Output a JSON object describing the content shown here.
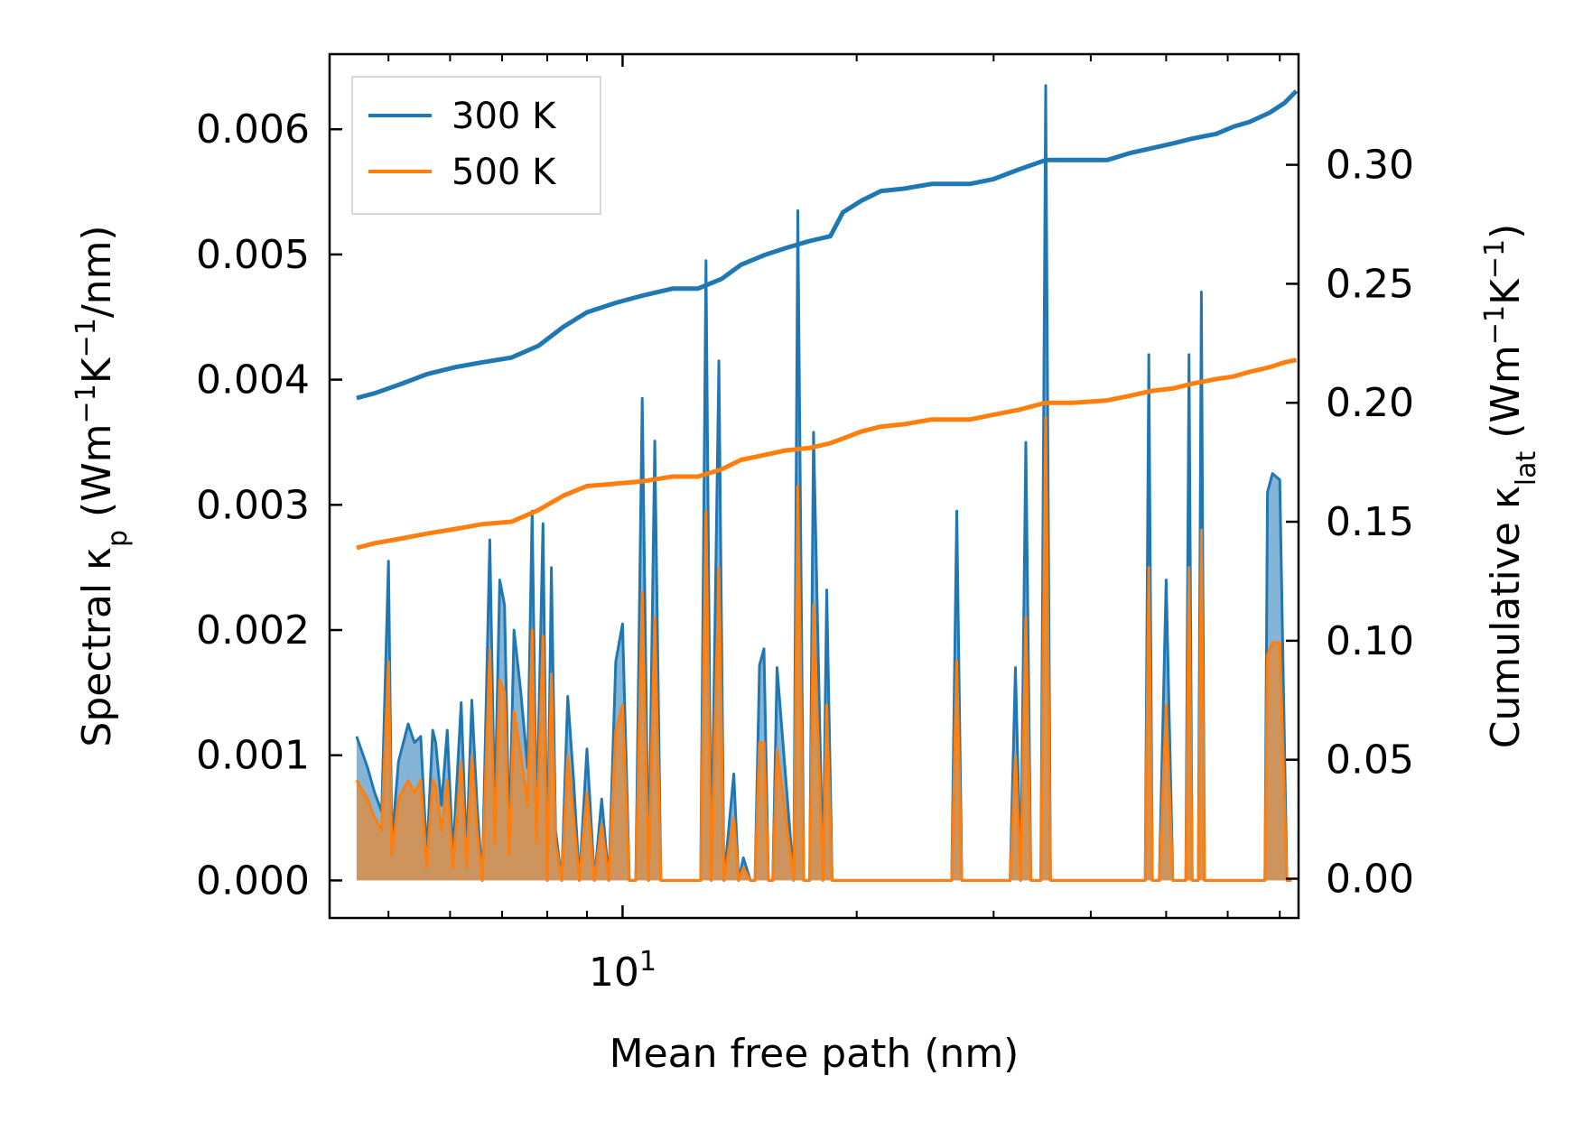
{
  "chart_data": {
    "type": "line",
    "xlabel": "Mean free path (nm)",
    "x_scale": "log",
    "xlim": [
      4.2,
      74
    ],
    "x_major_ticks": [
      {
        "value": 10,
        "base": "10",
        "exp": "1"
      }
    ],
    "x_minor_ticks": [
      5,
      6,
      7,
      8,
      9,
      20,
      30,
      40,
      50,
      60,
      70
    ],
    "left_axis": {
      "label_prefix": "Spectral κ",
      "label_sub": "p",
      "label_suffix": " (Wm",
      "label_sup1": "−1",
      "label_mid": "K",
      "label_sup2": "−1",
      "label_end": "/nm)",
      "ylim": [
        -0.0003,
        0.0066
      ],
      "ticks": [
        0,
        0.001,
        0.002,
        0.003,
        0.004,
        0.005,
        0.006
      ],
      "tick_labels": [
        "0.000",
        "0.001",
        "0.002",
        "0.003",
        "0.004",
        "0.005",
        "0.006"
      ]
    },
    "right_axis": {
      "label_prefix": "Cumulative κ",
      "label_sub": "lat",
      "label_suffix": " (Wm",
      "label_sup1": "−1",
      "label_mid": "K",
      "label_sup2": "−1",
      "label_end": ")",
      "ylim": [
        -0.0165,
        0.3465
      ],
      "ticks": [
        0,
        0.05,
        0.1,
        0.15,
        0.2,
        0.25,
        0.3
      ],
      "tick_labels": [
        "0.00",
        "0.05",
        "0.10",
        "0.15",
        "0.20",
        "0.25",
        "0.30"
      ]
    },
    "legend": {
      "position": "top-left",
      "entries": [
        {
          "name": "300 K",
          "color": "#1f77b4"
        },
        {
          "name": "500 K",
          "color": "#ff7f0e"
        }
      ]
    },
    "series": [
      {
        "name": "300 K",
        "axis": "right",
        "kind": "cumulative",
        "color": "#1f77b4",
        "x": [
          4.55,
          4.8,
          5.2,
          5.6,
          6.1,
          6.6,
          7.2,
          7.8,
          8.4,
          9.0,
          9.8,
          10.6,
          11.6,
          12.5,
          13.4,
          14.2,
          15.2,
          16.2,
          17.4,
          18.5,
          19.2,
          20.3,
          21.5,
          23.0,
          25.0,
          28.0,
          30.0,
          32.3,
          35.0,
          38.0,
          40.5,
          42.0,
          45.0,
          48.0,
          51.0,
          54.0,
          58.0,
          61.0,
          64.0,
          68.0,
          71.0,
          73.5
        ],
        "y": [
          0.202,
          0.204,
          0.208,
          0.212,
          0.215,
          0.217,
          0.219,
          0.224,
          0.232,
          0.238,
          0.242,
          0.245,
          0.248,
          0.248,
          0.252,
          0.258,
          0.262,
          0.265,
          0.268,
          0.27,
          0.28,
          0.285,
          0.289,
          0.29,
          0.292,
          0.292,
          0.294,
          0.298,
          0.302,
          0.302,
          0.302,
          0.302,
          0.305,
          0.307,
          0.309,
          0.311,
          0.313,
          0.316,
          0.318,
          0.322,
          0.326,
          0.331
        ]
      },
      {
        "name": "500 K",
        "axis": "right",
        "kind": "cumulative",
        "color": "#ff7f0e",
        "x": [
          4.55,
          4.8,
          5.2,
          5.6,
          6.1,
          6.6,
          7.2,
          7.8,
          8.4,
          9.0,
          9.8,
          10.6,
          11.6,
          12.5,
          13.4,
          14.2,
          15.2,
          16.2,
          17.4,
          18.5,
          19.2,
          20.3,
          21.5,
          23.0,
          25.0,
          28.0,
          30.0,
          32.3,
          35.0,
          38.0,
          42.0,
          45.0,
          48.0,
          51.0,
          54.0,
          58.0,
          61.0,
          64.0,
          68.0,
          71.0,
          73.5
        ],
        "y": [
          0.139,
          0.141,
          0.143,
          0.145,
          0.147,
          0.149,
          0.15,
          0.155,
          0.161,
          0.165,
          0.166,
          0.167,
          0.169,
          0.169,
          0.172,
          0.176,
          0.178,
          0.18,
          0.181,
          0.183,
          0.185,
          0.188,
          0.19,
          0.191,
          0.193,
          0.193,
          0.195,
          0.197,
          0.2,
          0.2,
          0.201,
          0.203,
          0.205,
          0.206,
          0.208,
          0.21,
          0.211,
          0.213,
          0.215,
          0.217,
          0.218
        ]
      },
      {
        "name": "300 K spectral",
        "axis": "left",
        "kind": "filled",
        "color": "#1f77b4",
        "x": [
          4.55,
          4.7,
          4.8,
          4.9,
          5.0,
          5.05,
          5.15,
          5.3,
          5.4,
          5.5,
          5.6,
          5.7,
          5.75,
          5.85,
          5.95,
          6.05,
          6.2,
          6.3,
          6.4,
          6.5,
          6.6,
          6.75,
          6.85,
          6.95,
          7.05,
          7.15,
          7.25,
          7.4,
          7.55,
          7.65,
          7.75,
          7.9,
          8.0,
          8.1,
          8.2,
          8.35,
          8.5,
          8.65,
          8.8,
          9.0,
          9.2,
          9.4,
          9.6,
          9.8,
          10.0,
          10.2,
          10.4,
          10.6,
          10.8,
          11.0,
          11.2,
          12.6,
          12.8,
          13.0,
          13.3,
          13.5,
          13.9,
          14.1,
          14.3,
          14.6,
          14.8,
          15.0,
          15.2,
          15.4,
          15.6,
          15.8,
          16.6,
          16.8,
          17.1,
          17.4,
          17.6,
          18.1,
          18.3,
          18.6,
          19.0,
          19.2,
          19.6,
          20.0,
          20.4,
          20.8,
          21.2,
          21.6,
          22.0,
          26.5,
          26.9,
          27.3,
          31.5,
          32.0,
          32.5,
          33.0,
          33.5,
          34.0,
          34.5,
          35.0,
          35.5,
          36.0,
          47.0,
          47.5,
          48.0,
          49.0,
          50.0,
          51.0,
          53.0,
          53.5,
          54.0,
          55.0,
          55.5,
          56.0,
          67.0,
          67.5,
          68.5,
          70.0,
          71.5,
          72.5
        ],
        "y": [
          0.00115,
          0.0009,
          0.0007,
          0.00055,
          0.00255,
          0.0003,
          0.00095,
          0.00125,
          0.0011,
          0.00115,
          0.0002,
          0.0012,
          0.0011,
          0.0006,
          0.0012,
          0.0002,
          0.00142,
          0.0002,
          0.00144,
          0.0006,
          0.0,
          0.00272,
          0.0005,
          0.0024,
          0.0022,
          0.0003,
          0.002,
          0.0015,
          0.0009,
          0.00295,
          0.0004,
          0.00285,
          0.0,
          0.0025,
          0.0004,
          0.0,
          0.00147,
          0.0008,
          0.0,
          0.00105,
          0.0,
          0.00065,
          0.0,
          0.00175,
          0.00205,
          0.0,
          0.0,
          0.00385,
          0.0,
          0.00351,
          0.0,
          0.0,
          0.00495,
          0.0,
          0.00415,
          0.0,
          0.00085,
          0.0,
          0.00018,
          0.0,
          0.0,
          0.00172,
          0.00185,
          0.0,
          0.0,
          0.0017,
          0.0,
          0.00535,
          0.0,
          0.0,
          0.00358,
          0.0,
          0.00232,
          0.0,
          0.0,
          0.0,
          0.0,
          0.0,
          0.0,
          0.0,
          0.0,
          0.0,
          0.0,
          0.0,
          0.00295,
          0.0,
          0.0,
          0.0017,
          0.0,
          0.0035,
          0.0,
          0.0,
          0.0,
          0.00635,
          0.0,
          0.0,
          0.0,
          0.0042,
          0.0,
          0.0,
          0.0024,
          0.0,
          0.0,
          0.0042,
          0.0,
          0.0,
          0.0047,
          0.0,
          0.0,
          0.0031,
          0.00325,
          0.0032,
          0.0,
          0.0
        ]
      },
      {
        "name": "500 K spectral",
        "axis": "left",
        "kind": "filled",
        "color": "#ff7f0e",
        "x": [
          4.55,
          4.7,
          4.8,
          4.9,
          5.0,
          5.05,
          5.15,
          5.3,
          5.4,
          5.5,
          5.6,
          5.7,
          5.75,
          5.85,
          5.95,
          6.05,
          6.2,
          6.3,
          6.4,
          6.5,
          6.6,
          6.75,
          6.85,
          6.95,
          7.05,
          7.15,
          7.25,
          7.4,
          7.55,
          7.65,
          7.75,
          7.9,
          8.0,
          8.1,
          8.2,
          8.35,
          8.5,
          8.65,
          8.8,
          9.0,
          9.2,
          9.4,
          9.6,
          9.8,
          10.0,
          10.2,
          10.4,
          10.6,
          10.8,
          11.0,
          11.2,
          12.6,
          12.8,
          13.0,
          13.3,
          13.5,
          13.9,
          14.1,
          14.3,
          14.6,
          14.8,
          15.0,
          15.2,
          15.4,
          15.6,
          15.8,
          16.6,
          16.8,
          17.1,
          17.4,
          17.6,
          18.1,
          18.3,
          18.6,
          19.0,
          19.2,
          19.6,
          20.0,
          20.4,
          20.8,
          21.2,
          21.6,
          22.0,
          26.5,
          26.9,
          27.3,
          31.5,
          32.0,
          32.5,
          33.0,
          33.5,
          34.0,
          34.5,
          35.0,
          35.5,
          36.0,
          47.0,
          47.5,
          48.0,
          49.0,
          50.0,
          51.0,
          53.0,
          53.5,
          54.0,
          55.0,
          55.5,
          56.0,
          67.0,
          67.5,
          68.5,
          70.0,
          71.5,
          72.5
        ],
        "y": [
          0.0008,
          0.00065,
          0.0005,
          0.0004,
          0.00175,
          0.0002,
          0.00065,
          0.0008,
          0.0007,
          0.0008,
          0.0001,
          0.0008,
          0.00075,
          0.0004,
          0.0008,
          0.0001,
          0.00095,
          0.0001,
          0.001,
          0.0004,
          0.0,
          0.00185,
          0.0003,
          0.0016,
          0.0015,
          0.0002,
          0.00135,
          0.001,
          0.0006,
          0.002,
          0.0003,
          0.00195,
          0.0,
          0.00165,
          0.0003,
          0.0,
          0.001,
          0.0005,
          0.0,
          0.0007,
          0.0,
          0.00045,
          0.0,
          0.0012,
          0.0014,
          0.0,
          0.0,
          0.0023,
          0.0,
          0.0021,
          0.0,
          0.0,
          0.00295,
          0.0,
          0.0025,
          0.0,
          0.0005,
          0.0,
          0.0001,
          0.0,
          0.0,
          0.0011,
          0.0011,
          0.0,
          0.0,
          0.00105,
          0.0,
          0.00315,
          0.0,
          0.0,
          0.0022,
          0.0,
          0.0014,
          0.0,
          0.0,
          0.0,
          0.0,
          0.0,
          0.0,
          0.0,
          0.0,
          0.0,
          0.0,
          0.0,
          0.00175,
          0.0,
          0.0,
          0.001,
          0.0,
          0.0021,
          0.0,
          0.0,
          0.0,
          0.0037,
          0.0,
          0.0,
          0.0,
          0.0025,
          0.0,
          0.0,
          0.0014,
          0.0,
          0.0,
          0.0025,
          0.0,
          0.0,
          0.0028,
          0.0,
          0.0,
          0.0018,
          0.0019,
          0.0019,
          0.0,
          0.0
        ]
      }
    ]
  }
}
